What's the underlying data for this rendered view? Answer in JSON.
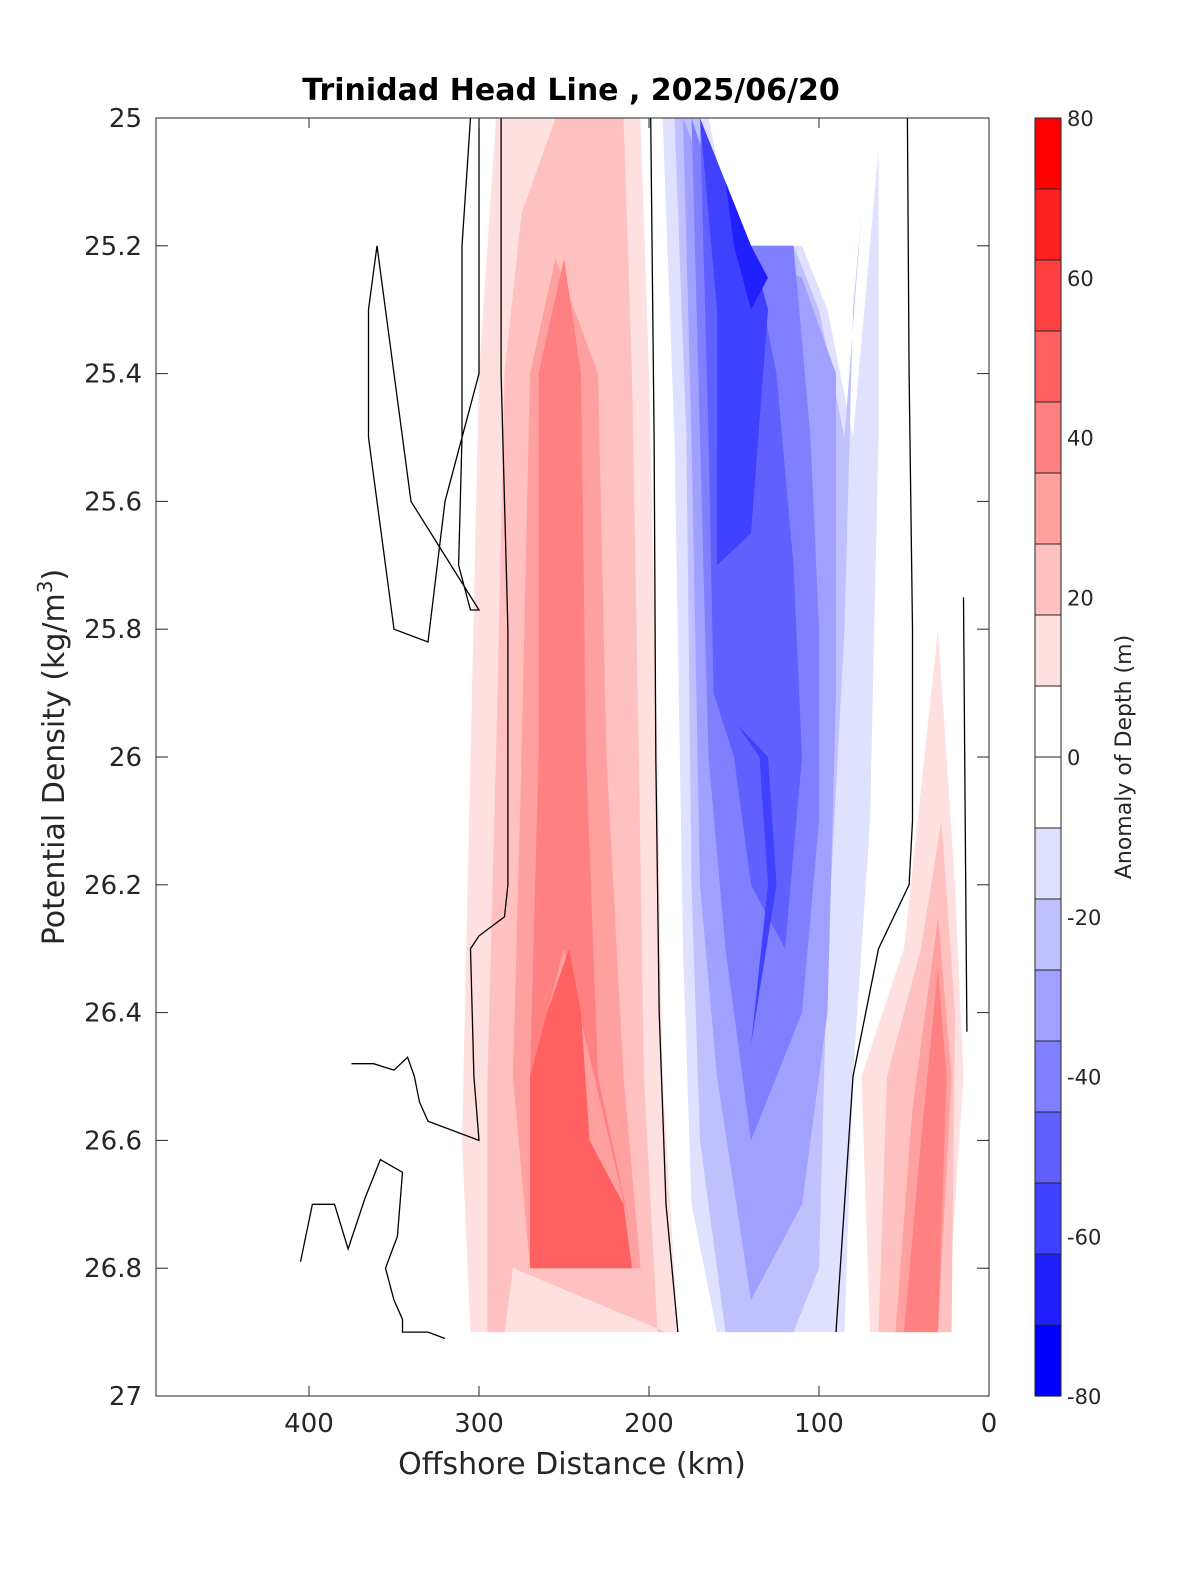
{
  "chart_data": {
    "type": "contourf",
    "title": "Trinidad Head Line , 2025/06/20",
    "xlabel": "Offshore Distance (km)",
    "ylabel": "Potential Density (kg/m",
    "ylabel_sup": "3",
    "ylabel_close": ")",
    "xlim": [
      490,
      0
    ],
    "x_direction": "reversed",
    "ylim": [
      25,
      27
    ],
    "y_direction": "reversed",
    "x_ticks": [
      400,
      300,
      200,
      100,
      0
    ],
    "x_tick_labels": [
      "400",
      "300",
      "200",
      "100",
      "0"
    ],
    "y_ticks": [
      25,
      25.2,
      25.4,
      25.6,
      25.8,
      26,
      26.2,
      26.4,
      26.6,
      26.8,
      27
    ],
    "y_tick_labels": [
      "25",
      "25.2",
      "25.4",
      "25.6",
      "25.8",
      "26",
      "26.2",
      "26.4",
      "26.6",
      "26.8",
      "27"
    ],
    "grid": false,
    "colorbar": {
      "label": "Anomaly of Depth (m)",
      "range": [
        -80,
        80
      ],
      "ticks": [
        80,
        60,
        40,
        20,
        0,
        -20,
        -40,
        -60,
        -80
      ],
      "tick_labels": [
        "80",
        "60",
        "40",
        "20",
        "0",
        "-20",
        "-40",
        "-60",
        "-80"
      ],
      "levels": [
        -80,
        -70,
        -60,
        -50,
        -40,
        -30,
        -20,
        -10,
        10,
        20,
        30,
        40,
        50,
        60,
        70,
        80
      ],
      "colors_top_to_bottom": [
        "#ff0000",
        "#ff2020",
        "#ff4040",
        "#ff6060",
        "#ff8080",
        "#ffa0a0",
        "#ffc0c0",
        "#ffe0e0",
        "#ffffff",
        "#ffffff",
        "#e0e0ff",
        "#c0c0ff",
        "#a0a0ff",
        "#8080ff",
        "#6060ff",
        "#4040ff",
        "#2020ff",
        "#0000ff"
      ]
    },
    "regions": [
      {
        "level": 10,
        "color": "#ffe0e0",
        "polygon": [
          [
            270,
            25
          ],
          [
            205,
            25
          ],
          [
            200,
            25.4
          ],
          [
            195,
            26.0
          ],
          [
            192,
            26.5
          ],
          [
            183,
            26.9
          ],
          [
            305,
            26.9
          ],
          [
            310,
            26.6
          ],
          [
            305,
            26.0
          ],
          [
            300,
            25.4
          ],
          [
            290,
            25.0
          ]
        ]
      },
      {
        "level": 20,
        "color": "#ffc0c0",
        "polygon": [
          [
            255,
            25
          ],
          [
            215,
            25
          ],
          [
            210,
            25.4
          ],
          [
            206,
            26.0
          ],
          [
            203,
            26.5
          ],
          [
            195,
            26.9
          ],
          [
            190,
            26.9
          ],
          [
            280,
            26.8
          ],
          [
            285,
            26.9
          ],
          [
            295,
            26.9
          ],
          [
            295,
            26.5
          ],
          [
            290,
            26.0
          ],
          [
            285,
            25.4
          ],
          [
            275,
            25.15
          ]
        ]
      },
      {
        "level": 30,
        "color": "#ffa0a0",
        "polygon": [
          [
            255,
            25.22
          ],
          [
            230,
            25.4
          ],
          [
            225,
            26.0
          ],
          [
            215,
            26.5
          ],
          [
            205,
            26.8
          ],
          [
            270,
            26.8
          ],
          [
            280,
            26.5
          ],
          [
            275,
            26.0
          ],
          [
            270,
            25.4
          ]
        ]
      },
      {
        "level": 40,
        "color": "#ff8080",
        "polygon": [
          [
            250,
            25.22
          ],
          [
            240,
            25.4
          ],
          [
            237,
            26.0
          ],
          [
            230,
            26.5
          ],
          [
            210,
            26.75
          ],
          [
            250,
            26.3
          ],
          [
            270,
            26.5
          ],
          [
            265,
            26.0
          ],
          [
            265,
            25.4
          ]
        ]
      },
      {
        "level": 50,
        "color": "#ff6060",
        "polygon": [
          [
            260,
            26.4
          ],
          [
            247,
            26.3
          ],
          [
            240,
            26.4
          ],
          [
            235,
            26.6
          ],
          [
            215,
            26.7
          ],
          [
            210,
            26.8
          ],
          [
            270,
            26.8
          ],
          [
            270,
            26.5
          ]
        ]
      },
      {
        "level": 10,
        "color": "#ffe0e0",
        "polygon": [
          [
            30,
            25.8
          ],
          [
            20,
            26.2
          ],
          [
            15,
            26.5
          ],
          [
            25,
            26.9
          ],
          [
            70,
            26.9
          ],
          [
            75,
            26.5
          ],
          [
            50,
            26.3
          ]
        ]
      },
      {
        "level": 20,
        "color": "#ffc0c0",
        "polygon": [
          [
            28,
            26.1
          ],
          [
            20,
            26.4
          ],
          [
            22,
            26.9
          ],
          [
            65,
            26.9
          ],
          [
            60,
            26.5
          ],
          [
            40,
            26.3
          ]
        ]
      },
      {
        "level": 30,
        "color": "#ffa0a0",
        "polygon": [
          [
            30,
            26.25
          ],
          [
            22,
            26.5
          ],
          [
            30,
            26.9
          ],
          [
            55,
            26.9
          ],
          [
            45,
            26.55
          ]
        ]
      },
      {
        "level": 40,
        "color": "#ff8080",
        "polygon": [
          [
            30,
            26.33
          ],
          [
            25,
            26.5
          ],
          [
            30,
            26.9
          ],
          [
            50,
            26.9
          ],
          [
            40,
            26.6
          ]
        ]
      },
      {
        "level": -10,
        "color": "#e0e0ff",
        "polygon": [
          [
            192,
            25
          ],
          [
            185,
            25.5
          ],
          [
            180,
            26.3
          ],
          [
            175,
            26.7
          ],
          [
            160,
            26.9
          ],
          [
            85,
            26.9
          ],
          [
            80,
            26.5
          ],
          [
            70,
            26.1
          ],
          [
            65,
            25.5
          ],
          [
            65,
            25.05
          ],
          [
            80,
            25.5
          ],
          [
            95,
            25.3
          ],
          [
            110,
            25.2
          ],
          [
            150,
            25.2
          ],
          [
            165,
            25.0
          ]
        ]
      },
      {
        "level": -20,
        "color": "#c0c0ff",
        "polygon": [
          [
            185,
            25
          ],
          [
            178,
            25.5
          ],
          [
            175,
            26.2
          ],
          [
            170,
            26.6
          ],
          [
            155,
            26.9
          ],
          [
            115,
            26.9
          ],
          [
            100,
            26.8
          ],
          [
            95,
            26.3
          ],
          [
            85,
            25.8
          ],
          [
            80,
            25.3
          ],
          [
            75,
            25.15
          ],
          [
            85,
            25.5
          ],
          [
            100,
            25.3
          ],
          [
            115,
            25.2
          ],
          [
            150,
            25.2
          ],
          [
            170,
            25.0
          ]
        ]
      },
      {
        "level": -30,
        "color": "#a0a0ff",
        "polygon": [
          [
            180,
            25
          ],
          [
            175,
            25.5
          ],
          [
            170,
            26.2
          ],
          [
            160,
            26.5
          ],
          [
            140,
            26.85
          ],
          [
            110,
            26.7
          ],
          [
            95,
            26.4
          ],
          [
            90,
            25.9
          ],
          [
            90,
            25.4
          ],
          [
            110,
            25.25
          ],
          [
            150,
            25.2
          ]
        ]
      },
      {
        "level": -40,
        "color": "#8080ff",
        "polygon": [
          [
            175,
            25
          ],
          [
            170,
            25.5
          ],
          [
            165,
            26.0
          ],
          [
            155,
            26.3
          ],
          [
            140,
            26.6
          ],
          [
            110,
            26.4
          ],
          [
            100,
            26.1
          ],
          [
            100,
            25.8
          ],
          [
            105,
            25.5
          ],
          [
            115,
            25.2
          ],
          [
            150,
            25.2
          ]
        ]
      },
      {
        "level": -50,
        "color": "#6060ff",
        "polygon": [
          [
            170,
            25
          ],
          [
            165,
            25.5
          ],
          [
            162,
            25.9
          ],
          [
            150,
            26.0
          ],
          [
            140,
            26.2
          ],
          [
            120,
            26.3
          ],
          [
            110,
            26.0
          ],
          [
            115,
            25.7
          ],
          [
            125,
            25.4
          ],
          [
            140,
            25.2
          ],
          [
            150,
            25.2
          ]
        ]
      },
      {
        "level": -60,
        "color": "#4040ff",
        "polygon": [
          [
            170,
            25
          ],
          [
            160,
            25.3
          ],
          [
            160,
            25.7
          ],
          [
            140,
            25.65
          ],
          [
            130,
            25.3
          ],
          [
            140,
            25.2
          ]
        ]
      },
      {
        "level": -60,
        "color": "#4040ff",
        "polygon": [
          [
            148,
            25.95
          ],
          [
            135,
            26.0
          ],
          [
            130,
            26.2
          ],
          [
            140,
            26.45
          ],
          [
            125,
            26.2
          ],
          [
            130,
            26.0
          ]
        ]
      },
      {
        "level": -70,
        "color": "#2020ff",
        "polygon": [
          [
            155,
            25.1
          ],
          [
            140,
            25.2
          ],
          [
            130,
            25.25
          ],
          [
            140,
            25.3
          ],
          [
            150,
            25.2
          ]
        ]
      }
    ],
    "contour_lines": [
      {
        "level": 0,
        "points": [
          [
            305,
            25
          ],
          [
            310,
            25.2
          ],
          [
            310,
            25.5
          ],
          [
            312,
            25.7
          ],
          [
            305,
            25.77
          ],
          [
            300,
            25.77
          ],
          [
            340,
            25.6
          ],
          [
            360,
            25.2
          ],
          [
            365,
            25.3
          ],
          [
            365,
            25.5
          ],
          [
            350,
            25.8
          ],
          [
            330,
            25.82
          ],
          [
            320,
            25.6
          ],
          [
            300,
            25.4
          ],
          [
            300,
            25.0
          ]
        ]
      },
      {
        "level": 0,
        "points": [
          [
            287,
            25
          ],
          [
            287,
            25.4
          ],
          [
            283,
            25.8
          ],
          [
            283,
            26.2
          ],
          [
            285,
            26.25
          ],
          [
            300,
            26.28
          ],
          [
            305,
            26.3
          ],
          [
            303,
            26.5
          ],
          [
            300,
            26.6
          ],
          [
            330,
            26.57
          ],
          [
            335,
            26.54
          ],
          [
            338,
            26.5
          ],
          [
            342,
            26.47
          ],
          [
            350,
            26.49
          ],
          [
            362,
            26.48
          ],
          [
            375,
            26.48
          ]
        ]
      },
      {
        "level": 0,
        "points": [
          [
            405,
            26.79
          ],
          [
            398,
            26.7
          ],
          [
            385,
            26.7
          ],
          [
            377,
            26.77
          ],
          [
            367,
            26.69
          ],
          [
            358,
            26.63
          ],
          [
            345,
            26.65
          ],
          [
            348,
            26.75
          ],
          [
            355,
            26.8
          ],
          [
            350,
            26.85
          ],
          [
            345,
            26.88
          ],
          [
            345,
            26.9
          ],
          [
            330,
            26.9
          ],
          [
            320,
            26.91
          ]
        ]
      },
      {
        "level": 0,
        "points": [
          [
            199,
            25
          ],
          [
            197,
            25.5
          ],
          [
            196,
            26.0
          ],
          [
            194,
            26.4
          ],
          [
            190,
            26.7
          ],
          [
            183,
            26.9
          ]
        ]
      },
      {
        "level": 0,
        "points": [
          [
            48,
            25
          ],
          [
            47,
            25.4
          ],
          [
            45,
            25.8
          ],
          [
            45,
            26.1
          ],
          [
            47,
            26.2
          ],
          [
            65,
            26.3
          ],
          [
            80,
            26.5
          ],
          [
            90,
            26.9
          ]
        ]
      },
      {
        "level": 0,
        "points": [
          [
            15,
            25.75
          ],
          [
            14,
            26.1
          ],
          [
            13,
            26.43
          ]
        ]
      }
    ]
  }
}
